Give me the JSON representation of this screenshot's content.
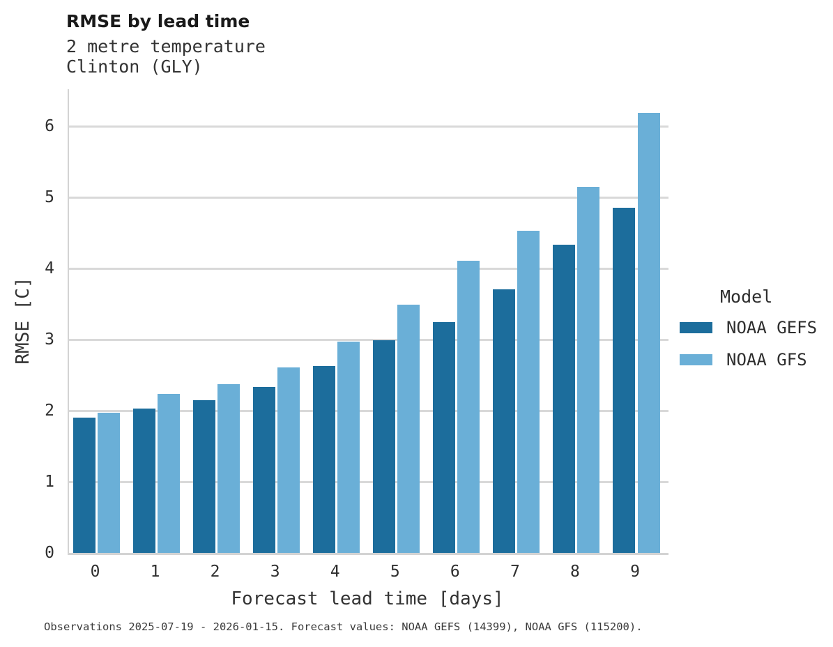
{
  "header": {
    "title": "RMSE by lead time",
    "subtitle_line1": "2 metre temperature",
    "subtitle_line2": "Clinton (GLY)"
  },
  "chart_data": {
    "type": "bar",
    "title": "RMSE by lead time",
    "subtitle": "2 metre temperature / Clinton (GLY)",
    "categories": [
      "0",
      "1",
      "2",
      "3",
      "4",
      "5",
      "6",
      "7",
      "8",
      "9"
    ],
    "series": [
      {
        "name": "NOAA GEFS",
        "color": "#1c6d9c",
        "values": [
          1.9,
          2.03,
          2.15,
          2.33,
          2.63,
          2.99,
          3.25,
          3.71,
          4.33,
          4.85
        ]
      },
      {
        "name": "NOAA GFS",
        "color": "#6aafd7",
        "values": [
          1.97,
          2.24,
          2.37,
          2.61,
          2.97,
          3.49,
          4.11,
          4.53,
          5.15,
          6.19
        ]
      }
    ],
    "xlabel": "Forecast lead time [days]",
    "ylabel": "RMSE [C]",
    "ylim": [
      0,
      6.52
    ],
    "yticks": [
      0,
      1,
      2,
      3,
      4,
      5,
      6
    ],
    "grid": "horizontal",
    "legend_title": "Model",
    "legend_position": "right"
  },
  "legend": {
    "title": "Model",
    "items": [
      {
        "label": "NOAA GEFS",
        "color": "#1c6d9c"
      },
      {
        "label": "NOAA GFS",
        "color": "#6aafd7"
      }
    ]
  },
  "colors": {
    "series_dark": "#1c6d9c",
    "series_light": "#6aafd7",
    "gridline": "#d9d9d9",
    "axis_spine": "#d3d3d3"
  },
  "footer": {
    "caption": "Observations 2025-07-19 - 2026-01-15. Forecast values: NOAA GEFS (14399), NOAA GFS (115200)."
  }
}
